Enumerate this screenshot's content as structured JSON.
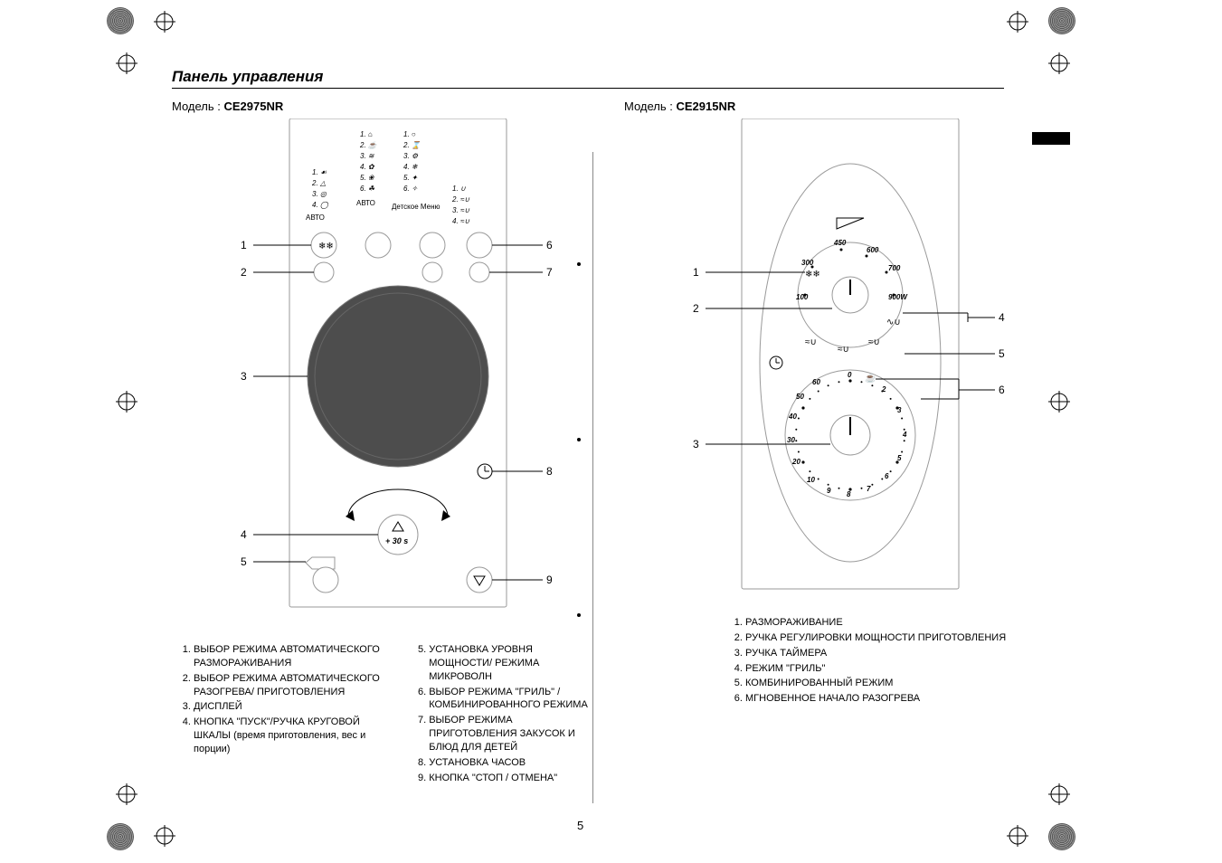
{
  "page": {
    "title": "Панель управления",
    "page_number": "5"
  },
  "models": {
    "left": {
      "label_prefix": "Модель : ",
      "name": "CE2975NR",
      "callouts_left": [
        "1",
        "2",
        "3",
        "4",
        "5"
      ],
      "callouts_right": [
        "6",
        "7",
        "8",
        "9"
      ],
      "plus30": "+ 30 s",
      "menu_auto": "АВТО",
      "menu_child": "Детское Меню",
      "legend_a": [
        "ВЫБОР РЕЖИМА АВТОМАТИЧЕСКОГО РАЗМОРАЖИВАНИЯ",
        "ВЫБОР РЕЖИМА АВТОМАТИЧЕСКОГО РАЗОГРЕВА/ ПРИГОТОВЛЕНИЯ",
        "ДИСПЛЕЙ",
        "КНОПКА \"ПУСК\"/РУЧКА КРУГОВОЙ ШКАЛЫ (время приготовления, вес и порции)"
      ],
      "legend_b": [
        "УСТАНОВКА УРОВНЯ МОЩНОСТИ/ РЕЖИМА МИКРОВОЛН",
        "ВЫБОР РЕЖИМА \"ГРИЛЬ\" / КОМБИНИРОВАННОГО РЕЖИМА",
        "ВЫБОР РЕЖИМА ПРИГОТОВЛЕНИЯ ЗАКУСОК И БЛЮД ДЛЯ ДЕТЕЙ",
        "УСТАНОВКА ЧАСОВ",
        "КНОПКА \"СТОП / ОТМЕНА\""
      ]
    },
    "right": {
      "label_prefix": "Модель : ",
      "name": "CE2915NR",
      "callouts_left": [
        "1",
        "2",
        "3"
      ],
      "callouts_right": [
        "4",
        "5",
        "6"
      ],
      "dial_power": {
        "labels": [
          "100",
          "300",
          "450",
          "600",
          "700",
          "900W"
        ]
      },
      "dial_time": {
        "labels": [
          "0",
          "2",
          "3",
          "4",
          "5",
          "6",
          "7",
          "8",
          "9",
          "10",
          "20",
          "30",
          "40",
          "50",
          "60"
        ]
      },
      "legend": [
        "РАЗМОРАЖИВАНИЕ",
        "РУЧКА РЕГУЛИРОВКИ МОЩНОСТИ ПРИГОТОВЛЕНИЯ",
        "РУЧКА ТАЙМЕРА",
        "РЕЖИМ \"ГРИЛЬ\"",
        "КОМБИНИРОВАННЫЙ РЕЖИМ",
        "МГНОВЕННОЕ НАЧАЛО РАЗОГРЕВА"
      ]
    }
  },
  "colors": {
    "line": "#000000",
    "panel_fill": "#ffffff",
    "panel_stroke": "#9a9a9a",
    "dial_fill": "#4d4d4d"
  }
}
